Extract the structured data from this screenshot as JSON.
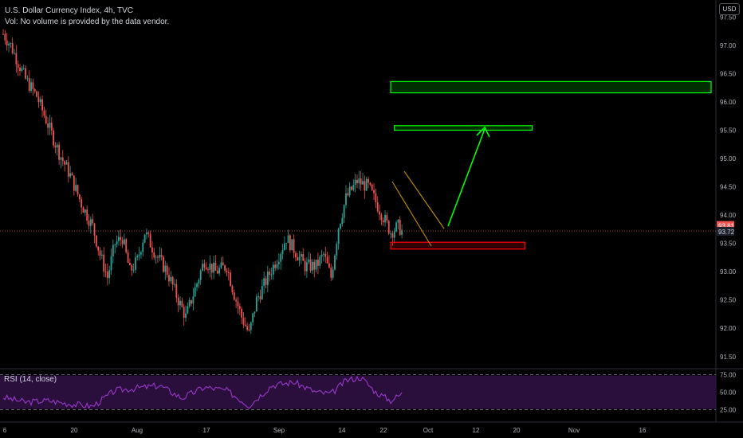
{
  "header": {
    "title": "U.S. Dollar Currency Index, 4h, TVC",
    "volume_note": "Vol: No volume is provided by the data vendor."
  },
  "currency_button": "USD",
  "rsi": {
    "label": "RSI (14, close)",
    "levels": [
      "75.00",
      "50.00",
      "25.00"
    ],
    "band_color": "#2a0f3d",
    "line_color": "#a43bd6"
  },
  "colors": {
    "up": "#26a69a",
    "down": "#ef5350",
    "last_price_line": "#ef5350",
    "zone_green": "#00ff00",
    "zone_red": "#ff0000",
    "channel": "#b8860b",
    "arrow": "#00ff00"
  },
  "chart_data": {
    "type": "candlestick",
    "y_axis_ticks": [
      "97.50",
      "97.00",
      "96.50",
      "96.00",
      "95.50",
      "95.00",
      "94.50",
      "94.00",
      "93.50",
      "93.00",
      "92.50",
      "92.00",
      "91.50"
    ],
    "ylim": [
      91.3,
      97.8
    ],
    "x_axis_ticks": [
      "6",
      "20",
      "Aug",
      "17",
      "Sep",
      "14",
      "22",
      "Oct",
      "12",
      "20",
      "Nov",
      "16"
    ],
    "price_labels": {
      "current": "93.81",
      "last": "93.72"
    },
    "path_points": [
      {
        "x": 0,
        "y": 97.2
      },
      {
        "x": 2,
        "y": 97.0
      },
      {
        "x": 4,
        "y": 96.7
      },
      {
        "x": 6,
        "y": 96.4
      },
      {
        "x": 9,
        "y": 96.1
      },
      {
        "x": 12,
        "y": 95.6
      },
      {
        "x": 15,
        "y": 95.1
      },
      {
        "x": 18,
        "y": 94.7
      },
      {
        "x": 21,
        "y": 94.2
      },
      {
        "x": 24,
        "y": 93.8
      },
      {
        "x": 26,
        "y": 93.3
      },
      {
        "x": 28,
        "y": 92.9
      },
      {
        "x": 30,
        "y": 93.5
      },
      {
        "x": 32,
        "y": 93.6
      },
      {
        "x": 34,
        "y": 93.0
      },
      {
        "x": 36,
        "y": 93.2
      },
      {
        "x": 38,
        "y": 93.7
      },
      {
        "x": 41,
        "y": 93.3
      },
      {
        "x": 44,
        "y": 93.0
      },
      {
        "x": 47,
        "y": 92.5
      },
      {
        "x": 49,
        "y": 92.2
      },
      {
        "x": 51,
        "y": 92.6
      },
      {
        "x": 54,
        "y": 93.2
      },
      {
        "x": 57,
        "y": 93.0
      },
      {
        "x": 60,
        "y": 93.1
      },
      {
        "x": 62,
        "y": 92.6
      },
      {
        "x": 64,
        "y": 92.2
      },
      {
        "x": 66,
        "y": 91.9
      },
      {
        "x": 68,
        "y": 92.5
      },
      {
        "x": 71,
        "y": 92.9
      },
      {
        "x": 74,
        "y": 93.3
      },
      {
        "x": 76,
        "y": 93.6
      },
      {
        "x": 78,
        "y": 93.4
      },
      {
        "x": 81,
        "y": 93.1
      },
      {
        "x": 84,
        "y": 93.1
      },
      {
        "x": 86,
        "y": 93.3
      },
      {
        "x": 88,
        "y": 92.9
      },
      {
        "x": 90,
        "y": 93.8
      },
      {
        "x": 92,
        "y": 94.3
      },
      {
        "x": 95,
        "y": 94.6
      },
      {
        "x": 98,
        "y": 94.5
      },
      {
        "x": 101,
        "y": 94.1
      },
      {
        "x": 104,
        "y": 93.7
      },
      {
        "x": 106,
        "y": 93.8
      },
      {
        "x": 107,
        "y": 93.72
      }
    ],
    "rsi_points": [
      {
        "x": 0,
        "y": 44
      },
      {
        "x": 6,
        "y": 38
      },
      {
        "x": 12,
        "y": 40
      },
      {
        "x": 18,
        "y": 36
      },
      {
        "x": 24,
        "y": 33
      },
      {
        "x": 30,
        "y": 52
      },
      {
        "x": 36,
        "y": 55
      },
      {
        "x": 42,
        "y": 58
      },
      {
        "x": 48,
        "y": 43
      },
      {
        "x": 54,
        "y": 56
      },
      {
        "x": 60,
        "y": 52
      },
      {
        "x": 66,
        "y": 34
      },
      {
        "x": 72,
        "y": 58
      },
      {
        "x": 78,
        "y": 62
      },
      {
        "x": 84,
        "y": 50
      },
      {
        "x": 88,
        "y": 48
      },
      {
        "x": 92,
        "y": 64
      },
      {
        "x": 96,
        "y": 68
      },
      {
        "x": 100,
        "y": 50
      },
      {
        "x": 104,
        "y": 40
      },
      {
        "x": 107,
        "y": 48
      }
    ],
    "zones": [
      {
        "name": "upper-target-zone",
        "x_from": 104,
        "x_to": 190,
        "y_top": 96.36,
        "y_bottom": 96.16,
        "color": "green"
      },
      {
        "name": "first-target-zone",
        "x_from": 105,
        "x_to": 142,
        "y_top": 95.58,
        "y_bottom": 95.5,
        "color": "green"
      },
      {
        "name": "support-zone",
        "x_from": 104,
        "x_to": 140,
        "y_top": 93.52,
        "y_bottom": 93.4,
        "color": "red"
      }
    ]
  }
}
